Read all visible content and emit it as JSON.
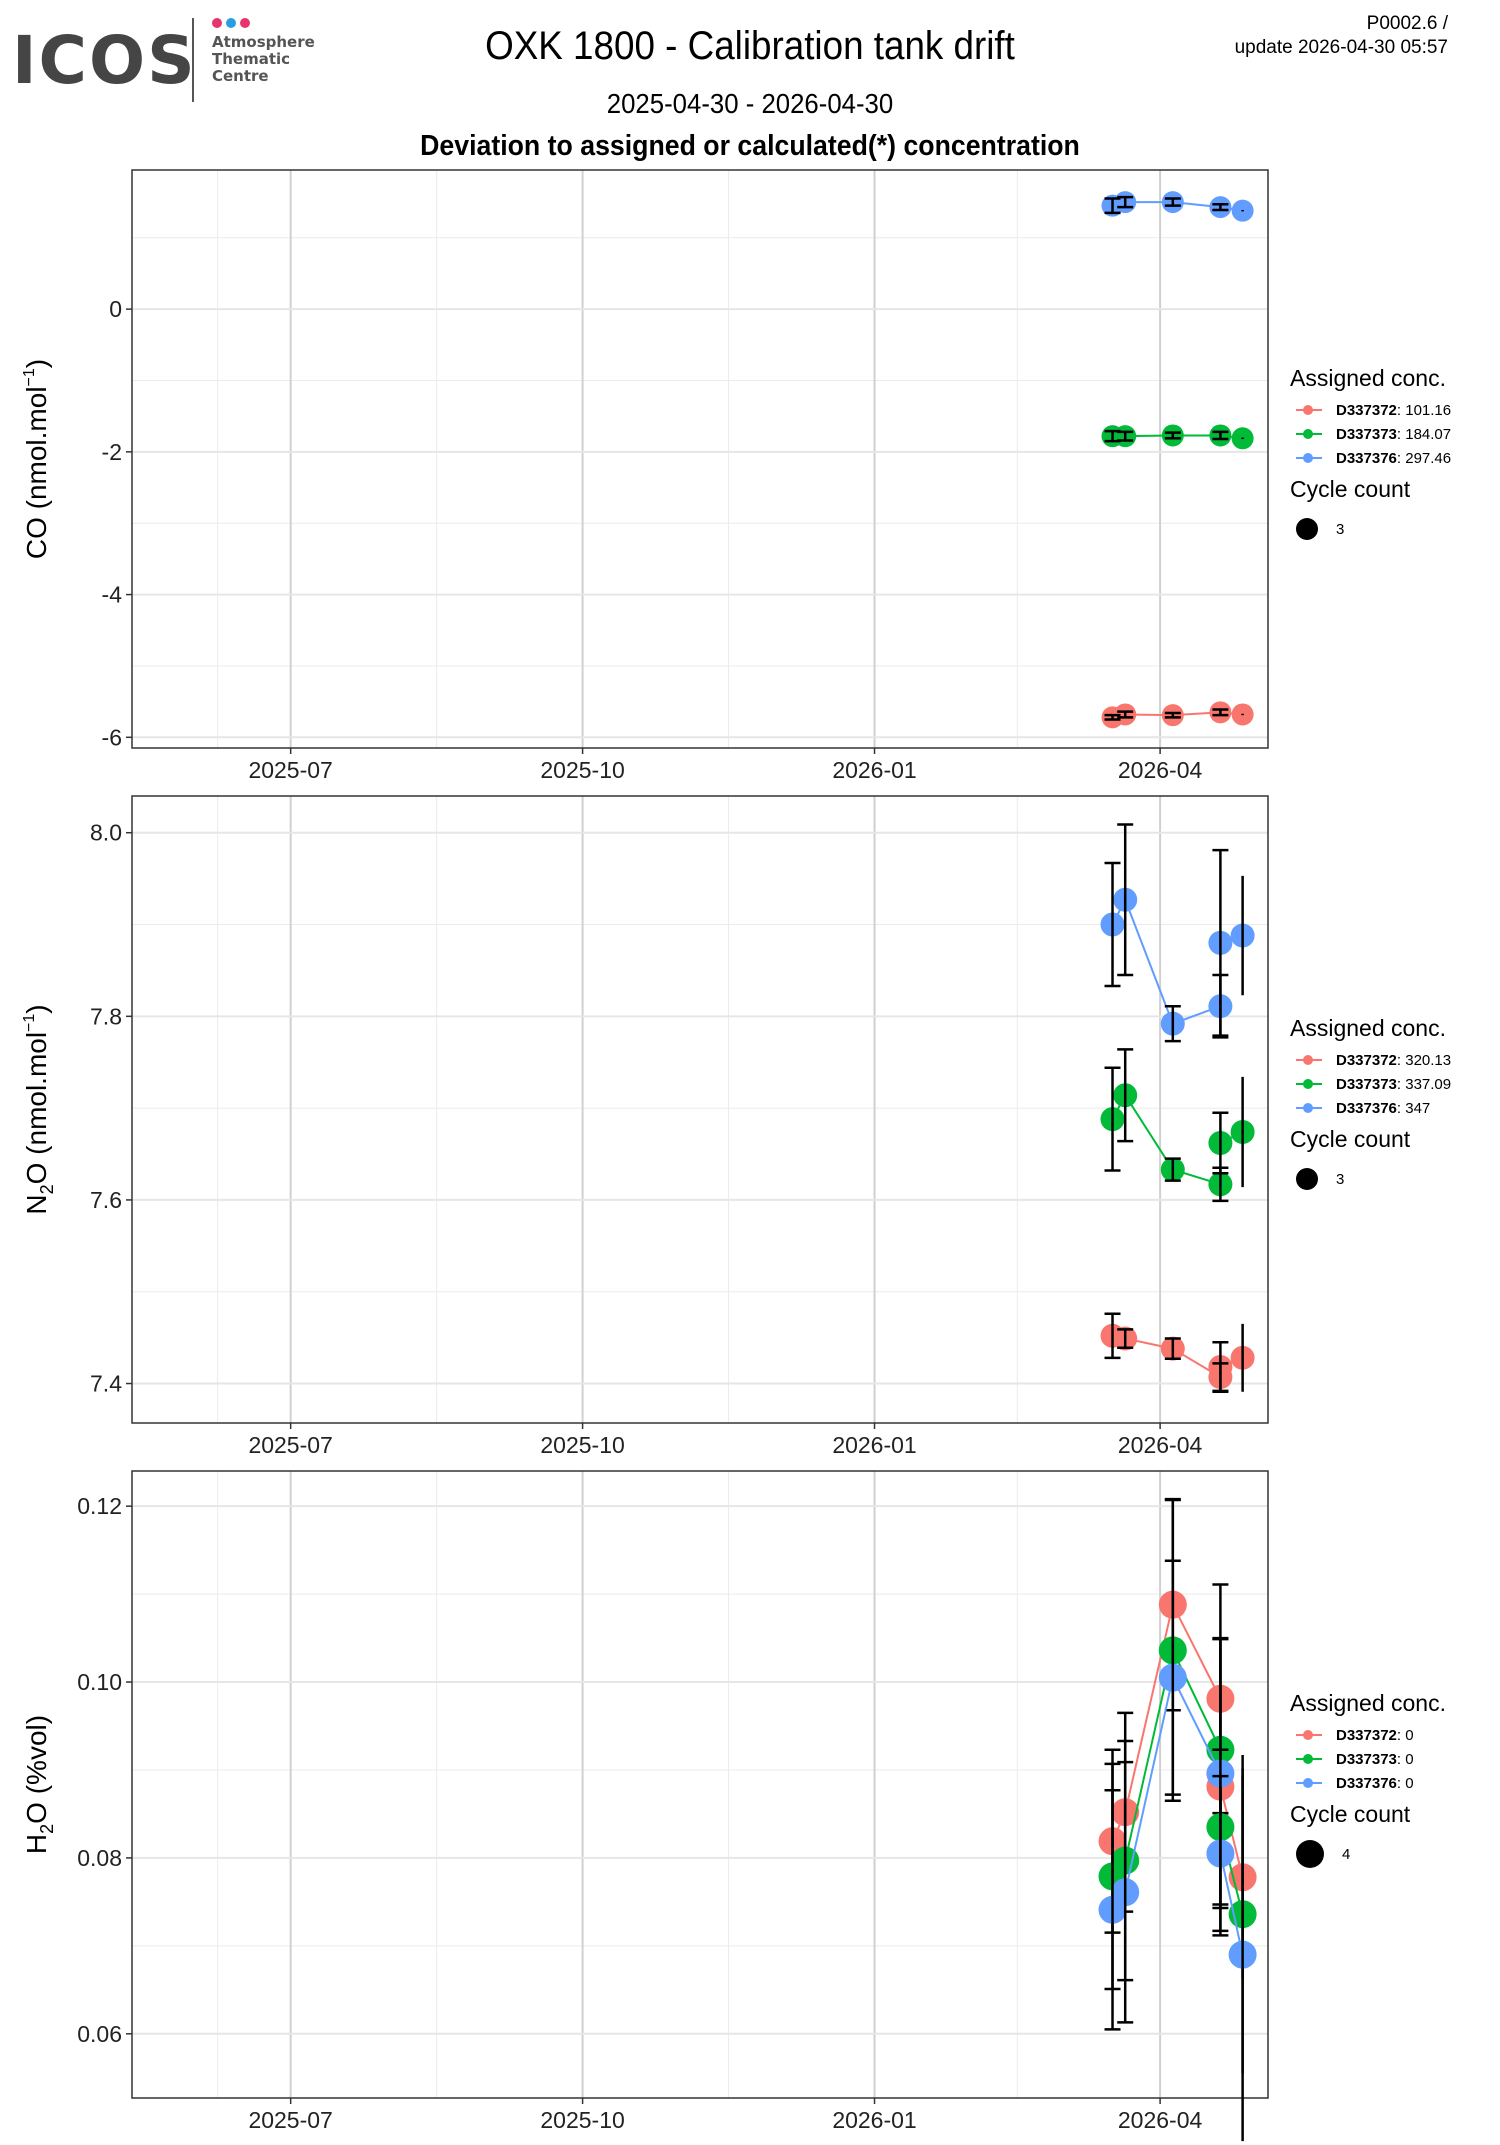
{
  "header": {
    "logo_word": "ICOS",
    "logo_sub": [
      "Atmosphere",
      "Thematic",
      "Centre"
    ],
    "logo_dot_colors": [
      "#e8336d",
      "#2a9fe0",
      "#e8336d"
    ],
    "title": "OXK 1800 - Calibration tank drift",
    "subtitle": "2025-04-30 - 2026-04-30",
    "heading": "Deviation to assigned or calculated(*) concentration",
    "version_line1": "P0002.6 /",
    "version_line2": "update  2026-04-30 05:57"
  },
  "series_colors": {
    "D337372": "#f8766d",
    "D337373": "#00ba38",
    "D337376": "#619cff"
  },
  "chart_data": [
    {
      "type": "line",
      "id": "co",
      "ylabel_main": "CO (nmol.mol",
      "ylabel_sup": "−1",
      "ylabel_end": ")",
      "xlabel": "",
      "x_ticks": [
        "2025-07",
        "2025-10",
        "2026-01",
        "2026-04"
      ],
      "y_ticks": [
        "0",
        "-2",
        "-4",
        "-6"
      ],
      "y_tick_values": [
        0,
        -2,
        -4,
        -6
      ],
      "ylim": [
        -6.15,
        1.95
      ],
      "xlim": [
        "2025-05-12",
        "2026-05-05"
      ],
      "legend": {
        "title": "Assigned conc.",
        "entries": [
          {
            "id": "D337372",
            "value": ": 101.16"
          },
          {
            "id": "D337373",
            "value": ": 184.07"
          },
          {
            "id": "D337376",
            "value": ": 297.46"
          }
        ],
        "cycle_title": "Cycle count",
        "cycle_value": "3"
      },
      "series": [
        {
          "name": "D337376",
          "points": [
            {
              "x": "2026-03-17",
              "y": 1.45,
              "err": 0.1
            },
            {
              "x": "2026-03-21",
              "y": 1.5,
              "err": 0.07
            },
            {
              "x": "2026-04-05",
              "y": 1.5,
              "err": 0.05
            },
            {
              "x": "2026-04-20",
              "y": 1.43,
              "err": 0.04
            },
            {
              "x": "2026-04-27",
              "y": 1.38,
              "err": 0.01
            }
          ]
        },
        {
          "name": "D337373",
          "points": [
            {
              "x": "2026-03-17",
              "y": -1.78,
              "err": 0.07
            },
            {
              "x": "2026-03-21",
              "y": -1.78,
              "err": 0.06
            },
            {
              "x": "2026-04-05",
              "y": -1.77,
              "err": 0.04
            },
            {
              "x": "2026-04-20",
              "y": -1.77,
              "err": 0.05
            },
            {
              "x": "2026-04-27",
              "y": -1.81,
              "err": 0.01
            }
          ]
        },
        {
          "name": "D337372",
          "points": [
            {
              "x": "2026-03-17",
              "y": -5.72,
              "err": 0.03
            },
            {
              "x": "2026-03-21",
              "y": -5.68,
              "err": 0.04
            },
            {
              "x": "2026-04-05",
              "y": -5.69,
              "err": 0.03
            },
            {
              "x": "2026-04-20",
              "y": -5.65,
              "err": 0.04
            },
            {
              "x": "2026-04-27",
              "y": -5.68,
              "err": 0.01
            }
          ]
        }
      ]
    },
    {
      "type": "line",
      "id": "n2o",
      "ylabel_main": "N",
      "ylabel_sub": "2",
      "ylabel_mid": "O (nmol.mol",
      "ylabel_sup": "−1",
      "ylabel_end": ")",
      "xlabel": "",
      "x_ticks": [
        "2025-07",
        "2025-10",
        "2026-01",
        "2026-04"
      ],
      "y_ticks": [
        "8.0",
        "7.8",
        "7.6",
        "7.4"
      ],
      "y_tick_values": [
        8.0,
        7.8,
        7.6,
        7.4
      ],
      "ylim": [
        7.357,
        8.04
      ],
      "xlim": [
        "2025-05-12",
        "2026-05-05"
      ],
      "legend": {
        "title": "Assigned conc.",
        "entries": [
          {
            "id": "D337372",
            "value": ": 320.13"
          },
          {
            "id": "D337373",
            "value": ": 337.09"
          },
          {
            "id": "D337376",
            "value": ": 347"
          }
        ],
        "cycle_title": "Cycle count",
        "cycle_value": "3"
      },
      "series": [
        {
          "name": "D337376",
          "points": [
            {
              "x": "2026-03-17",
              "y": 7.9,
              "err": 0.067
            },
            {
              "x": "2026-03-21",
              "y": 7.927,
              "err": 0.082
            },
            {
              "x": "2026-04-05",
              "y": 7.792,
              "err": 0.019
            },
            {
              "x": "2026-04-20",
              "y": 7.811,
              "err": 0.034
            },
            {
              "x": "2026-04-20",
              "y": 7.88,
              "err": 0.101
            },
            {
              "x": "2026-04-27",
              "y": 7.888,
              "err": 0.065
            }
          ]
        },
        {
          "name": "D337373",
          "points": [
            {
              "x": "2026-03-17",
              "y": 7.688,
              "err": 0.056
            },
            {
              "x": "2026-03-21",
              "y": 7.714,
              "err": 0.05
            },
            {
              "x": "2026-04-05",
              "y": 7.633,
              "err": 0.012
            },
            {
              "x": "2026-04-20",
              "y": 7.617,
              "err": 0.018
            },
            {
              "x": "2026-04-20",
              "y": 7.662,
              "err": 0.033
            },
            {
              "x": "2026-04-27",
              "y": 7.674,
              "err": 0.06
            }
          ]
        },
        {
          "name": "D337372",
          "points": [
            {
              "x": "2026-03-17",
              "y": 7.452,
              "err": 0.024
            },
            {
              "x": "2026-03-21",
              "y": 7.449,
              "err": 0.01
            },
            {
              "x": "2026-04-05",
              "y": 7.438,
              "err": 0.011
            },
            {
              "x": "2026-04-20",
              "y": 7.407,
              "err": 0.015
            },
            {
              "x": "2026-04-20",
              "y": 7.418,
              "err": 0.027
            },
            {
              "x": "2026-04-27",
              "y": 7.428,
              "err": 0.037
            }
          ]
        }
      ]
    },
    {
      "type": "line",
      "id": "h2o",
      "ylabel_main": "H",
      "ylabel_sub": "2",
      "ylabel_mid": "O (%vol)",
      "ylabel_sup": "",
      "ylabel_end": "",
      "xlabel": "",
      "x_ticks": [
        "2025-07",
        "2025-10",
        "2026-01",
        "2026-04"
      ],
      "y_ticks": [
        "0.12",
        "0.10",
        "0.08",
        "0.06"
      ],
      "y_tick_values": [
        0.12,
        0.1,
        0.08,
        0.06
      ],
      "ylim": [
        0.0527,
        0.124
      ],
      "xlim": [
        "2025-05-12",
        "2026-05-05"
      ],
      "legend": {
        "title": "Assigned conc.",
        "entries": [
          {
            "id": "D337372",
            "value": ": 0"
          },
          {
            "id": "D337373",
            "value": ": 0"
          },
          {
            "id": "D337376",
            "value": ": 0"
          }
        ],
        "cycle_title": "Cycle count",
        "cycle_value": "4"
      },
      "series": [
        {
          "name": "D337372",
          "points": [
            {
              "x": "2026-03-17",
              "y": 0.0819,
              "err": 0.0104
            },
            {
              "x": "2026-03-21",
              "y": 0.0852,
              "err": 0.0113
            },
            {
              "x": "2026-04-05",
              "y": 0.1088,
              "err": 0.012
            },
            {
              "x": "2026-04-20",
              "y": 0.0981,
              "err": 0.013
            },
            {
              "x": "2026-04-20",
              "y": 0.0881,
              "err": 0.0169
            },
            {
              "x": "2026-04-27",
              "y": 0.0778,
              "err": 0.0116
            }
          ]
        },
        {
          "name": "D337373",
          "points": [
            {
              "x": "2026-03-17",
              "y": 0.0779,
              "err": 0.0128
            },
            {
              "x": "2026-03-21",
              "y": 0.0797,
              "err": 0.0136
            },
            {
              "x": "2026-04-05",
              "y": 0.1036,
              "err": 0.0171
            },
            {
              "x": "2026-04-20",
              "y": 0.0923,
              "err": 0.0126
            },
            {
              "x": "2026-04-20",
              "y": 0.0835,
              "err": 0.0088
            },
            {
              "x": "2026-04-27",
              "y": 0.0736,
              "err": 0.0181
            }
          ]
        },
        {
          "name": "D337376",
          "points": [
            {
              "x": "2026-03-17",
              "y": 0.0741,
              "err": 0.0136
            },
            {
              "x": "2026-03-21",
              "y": 0.0761,
              "err": 0.0148
            },
            {
              "x": "2026-04-05",
              "y": 0.1005,
              "err": 0.0133
            },
            {
              "x": "2026-04-20",
              "y": 0.0896,
              "err": 0.0153
            },
            {
              "x": "2026-04-20",
              "y": 0.0805,
              "err": 0.0088
            },
            {
              "x": "2026-04-27",
              "y": 0.069,
              "err": 0.0212
            }
          ]
        }
      ]
    }
  ]
}
